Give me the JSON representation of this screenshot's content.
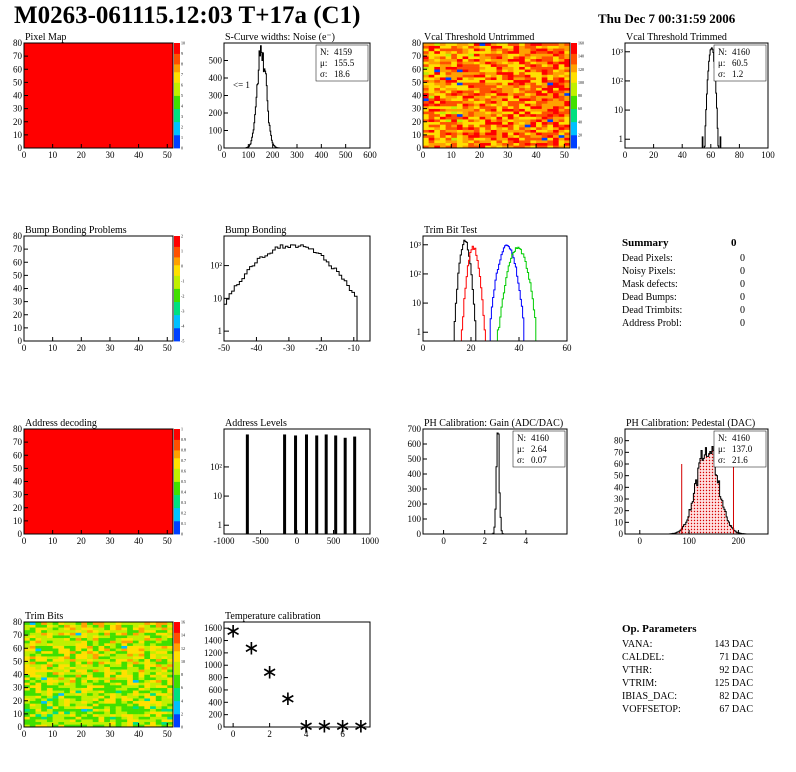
{
  "header": {
    "title": "M0263-061115.12:03 T+17a (C1)",
    "date": "Thu Dec  7 00:31:59 2006"
  },
  "summary": {
    "title": "Summary",
    "value": "0",
    "rows": [
      {
        "label": "Dead Pixels:",
        "value": "0"
      },
      {
        "label": "Noisy Pixels:",
        "value": "0"
      },
      {
        "label": "Mask defects:",
        "value": "0"
      },
      {
        "label": "Dead Bumps:",
        "value": "0"
      },
      {
        "label": "Dead Trimbits:",
        "value": "0"
      },
      {
        "label": "Address Probl:",
        "value": "0"
      }
    ]
  },
  "op_params": {
    "title": "Op. Parameters",
    "rows": [
      {
        "label": "VANA:",
        "value": "143 DAC"
      },
      {
        "label": "CALDEL:",
        "value": "71 DAC"
      },
      {
        "label": "VTHR:",
        "value": "92 DAC"
      },
      {
        "label": "VTRIM:",
        "value": "125 DAC"
      },
      {
        "label": "IBIAS_DAC:",
        "value": "82 DAC"
      },
      {
        "label": "VOFFSETOP:",
        "value": "67 DAC"
      }
    ]
  },
  "chart_data": [
    {
      "id": "pixel_map",
      "type": "heatmap",
      "title": "Pixel Map",
      "xlim": [
        0,
        52
      ],
      "ylim": [
        0,
        80
      ],
      "xticks": [
        0,
        10,
        20,
        30,
        40,
        50
      ],
      "yticks": [
        0,
        10,
        20,
        30,
        40,
        50,
        60,
        70,
        80
      ],
      "fill": "uniform-max",
      "zlim": [
        0,
        10
      ],
      "zticks": [
        0,
        1,
        2,
        3,
        4,
        5,
        6,
        7,
        8,
        9,
        10
      ]
    },
    {
      "id": "scurve",
      "type": "histogram",
      "title": "S-Curve widths: Noise (e⁻)",
      "xlim": [
        0,
        600
      ],
      "ylim": [
        0,
        600
      ],
      "xticks": [
        0,
        100,
        200,
        300,
        400,
        500,
        600
      ],
      "yticks": [
        0,
        100,
        200,
        300,
        400,
        500
      ],
      "annotation": "<= 1",
      "stats": [
        {
          "label": "N:",
          "value": "4159"
        },
        {
          "label": "μ:",
          "value": "155.5"
        },
        {
          "label": "σ:",
          "value": "18.6"
        }
      ],
      "series": [
        {
          "color": "#000000",
          "mean": 155.5,
          "sigma": 18.6,
          "peak": 560,
          "xmin": 90,
          "xmax": 270,
          "bins": 60
        }
      ]
    },
    {
      "id": "vcal_untrimmed",
      "type": "heatmap",
      "title": "Vcal Threshold Untrimmed",
      "xlim": [
        0,
        52
      ],
      "ylim": [
        0,
        80
      ],
      "xticks": [
        0,
        10,
        20,
        30,
        40,
        50
      ],
      "yticks": [
        0,
        10,
        20,
        30,
        40,
        50,
        60,
        70,
        80
      ],
      "fill": "noise-high",
      "zlim": [
        0,
        160
      ],
      "zticks": [
        0,
        20,
        40,
        60,
        80,
        100,
        120,
        140,
        160
      ]
    },
    {
      "id": "vcal_trimmed",
      "type": "histogram",
      "title": "Vcal Threshold Trimmed",
      "logy": true,
      "xlim": [
        0,
        100
      ],
      "ylim": [
        0.5,
        2000
      ],
      "xticks": [
        0,
        20,
        40,
        60,
        80,
        100
      ],
      "ytick_labels": [
        {
          "v": 1,
          "t": "1"
        },
        {
          "v": 10,
          "t": "10"
        },
        {
          "v": 100,
          "t": "10²"
        },
        {
          "v": 1000,
          "t": "10³"
        }
      ],
      "stats": [
        {
          "label": "N:",
          "value": "4160"
        },
        {
          "label": "μ:",
          "value": "60.5"
        },
        {
          "label": "σ:",
          "value": "1.2"
        }
      ],
      "series": [
        {
          "color": "#000000",
          "mean": 60.5,
          "sigma": 1.2,
          "peak": 1450,
          "xmin": 54,
          "xmax": 67,
          "bins": 26
        }
      ]
    },
    {
      "id": "bump_problems",
      "type": "heatmap",
      "title": "Bump Bonding Problems",
      "xlim": [
        0,
        52
      ],
      "ylim": [
        0,
        80
      ],
      "xticks": [
        0,
        10,
        20,
        30,
        40,
        50
      ],
      "yticks": [
        0,
        10,
        20,
        30,
        40,
        50,
        60,
        70,
        80
      ],
      "fill": "empty",
      "zlim": [
        -5,
        2
      ],
      "zticks": [
        -5,
        -4,
        -3,
        -2,
        -1,
        0,
        1,
        2
      ]
    },
    {
      "id": "bump_bonding",
      "type": "histogram",
      "title": "Bump Bonding",
      "logy": true,
      "xlim": [
        -50,
        -5
      ],
      "ylim": [
        0.5,
        800
      ],
      "xticks": [
        -50,
        -40,
        -30,
        -20,
        -10
      ],
      "ytick_labels": [
        {
          "v": 1,
          "t": "1"
        },
        {
          "v": 10,
          "t": "10"
        },
        {
          "v": 100,
          "t": "10²"
        }
      ],
      "series": [
        {
          "color": "#000000",
          "mean": -29,
          "sigma": 7.2,
          "peak": 420,
          "xmin": -50,
          "xmax": -9,
          "bins": 52
        }
      ]
    },
    {
      "id": "trim_bit_test",
      "type": "histogram",
      "title": "Trim Bit Test",
      "logy": true,
      "xlim": [
        0,
        60
      ],
      "ylim": [
        0.5,
        2000
      ],
      "xticks": [
        0,
        20,
        40,
        60
      ],
      "ytick_labels": [
        {
          "v": 1,
          "t": "1"
        },
        {
          "v": 10,
          "t": "10"
        },
        {
          "v": 100,
          "t": "10²"
        },
        {
          "v": 1000,
          "t": "10³"
        }
      ],
      "series": [
        {
          "color": "#000000",
          "mean": 17.5,
          "sigma": 1.2,
          "peak": 1300,
          "xmin": 13,
          "xmax": 22,
          "bins": 18
        },
        {
          "color": "#ff0000",
          "mean": 21.0,
          "sigma": 1.3,
          "peak": 800,
          "xmin": 16,
          "xmax": 26,
          "bins": 20
        },
        {
          "color": "#0000ff",
          "mean": 35.0,
          "sigma": 2.0,
          "peak": 900,
          "xmin": 28,
          "xmax": 42,
          "bins": 28
        },
        {
          "color": "#00cc00",
          "mean": 39.5,
          "sigma": 2.2,
          "peak": 750,
          "xmin": 31,
          "xmax": 47,
          "bins": 32
        }
      ]
    },
    {
      "id": "address_decoding",
      "type": "heatmap",
      "title": "Address decoding",
      "xlim": [
        0,
        52
      ],
      "ylim": [
        0,
        80
      ],
      "xticks": [
        0,
        10,
        20,
        30,
        40,
        50
      ],
      "yticks": [
        0,
        10,
        20,
        30,
        40,
        50,
        60,
        70,
        80
      ],
      "fill": "uniform-max",
      "zlim": [
        0,
        1
      ],
      "zticks": [
        0,
        0.1,
        0.2,
        0.3,
        0.4,
        0.5,
        0.6,
        0.7,
        0.8,
        0.9,
        1
      ]
    },
    {
      "id": "address_levels",
      "type": "histogram",
      "title": "Address Levels",
      "logy": true,
      "xlim": [
        -1000,
        1000
      ],
      "ylim": [
        0.5,
        2000
      ],
      "xticks": [
        -1000,
        -500,
        0,
        500,
        1000
      ],
      "ytick_labels": [
        {
          "v": 1,
          "t": "1"
        },
        {
          "v": 10,
          "t": "10"
        },
        {
          "v": 100,
          "t": "10²"
        }
      ],
      "spikes": [
        {
          "x": -680,
          "h": 1300
        },
        {
          "x": -170,
          "h": 1300
        },
        {
          "x": -20,
          "h": 1200
        },
        {
          "x": 130,
          "h": 1300
        },
        {
          "x": 270,
          "h": 1200
        },
        {
          "x": 400,
          "h": 1300
        },
        {
          "x": 530,
          "h": 1200
        },
        {
          "x": 660,
          "h": 1000
        },
        {
          "x": 790,
          "h": 1100
        }
      ]
    },
    {
      "id": "ph_gain",
      "type": "histogram",
      "title": "PH Calibration: Gain (ADC/DAC)",
      "xlim": [
        -1,
        6
      ],
      "ylim": [
        0,
        700
      ],
      "xticks": [
        0,
        2,
        4
      ],
      "yticks": [
        0,
        100,
        200,
        300,
        400,
        500,
        600,
        700
      ],
      "stats": [
        {
          "label": "N:",
          "value": "4160"
        },
        {
          "label": "μ:",
          "value": "2.64"
        },
        {
          "label": "σ:",
          "value": "0.07"
        }
      ],
      "series": [
        {
          "color": "#000000",
          "mean": 2.64,
          "sigma": 0.07,
          "peak": 660,
          "xmin": 2.35,
          "xmax": 2.95,
          "bins": 12
        }
      ]
    },
    {
      "id": "ph_pedestal",
      "type": "histogram",
      "title": "PH Calibration: Pedestal (DAC)",
      "xlim": [
        -30,
        260
      ],
      "ylim": [
        0,
        90
      ],
      "xticks": [
        0,
        100,
        200
      ],
      "yticks": [
        0,
        10,
        20,
        30,
        40,
        50,
        60,
        70,
        80
      ],
      "stats": [
        {
          "label": "N:",
          "value": "4160",
          "color": "#000000"
        },
        {
          "label": "μ:",
          "value": "137.0",
          "color": "#d40000"
        },
        {
          "label": "σ:",
          "value": "21.6",
          "color": "#d40000"
        }
      ],
      "fit": {
        "color": "#d40000",
        "cut_low": 85,
        "cut_high": 190
      },
      "series": [
        {
          "color": "#000000",
          "mean": 137,
          "sigma": 21.6,
          "peak": 75,
          "xmin": 60,
          "xmax": 215,
          "bins": 70
        }
      ]
    },
    {
      "id": "trim_bits",
      "type": "heatmap",
      "title": "Trim Bits",
      "xlim": [
        0,
        52
      ],
      "ylim": [
        0,
        80
      ],
      "xticks": [
        0,
        10,
        20,
        30,
        40,
        50
      ],
      "yticks": [
        0,
        10,
        20,
        30,
        40,
        50,
        60,
        70,
        80
      ],
      "fill": "noise-mid",
      "zlim": [
        0,
        16
      ],
      "zticks": [
        0,
        2,
        4,
        6,
        8,
        10,
        12,
        14,
        16
      ]
    },
    {
      "id": "temperature",
      "type": "scatter",
      "title": "Temperature calibration",
      "xlim": [
        -0.5,
        7.5
      ],
      "ylim": [
        0,
        1700
      ],
      "xticks": [
        0,
        2,
        4,
        6
      ],
      "yticks": [
        0,
        200,
        400,
        600,
        800,
        1000,
        1200,
        1400,
        1600
      ],
      "points": [
        {
          "x": 0,
          "y": 1560
        },
        {
          "x": 1,
          "y": 1290
        },
        {
          "x": 2,
          "y": 900
        },
        {
          "x": 3,
          "y": 470
        },
        {
          "x": 4,
          "y": 25
        },
        {
          "x": 5,
          "y": 25
        },
        {
          "x": 6,
          "y": 25
        },
        {
          "x": 7,
          "y": 25
        }
      ]
    }
  ]
}
